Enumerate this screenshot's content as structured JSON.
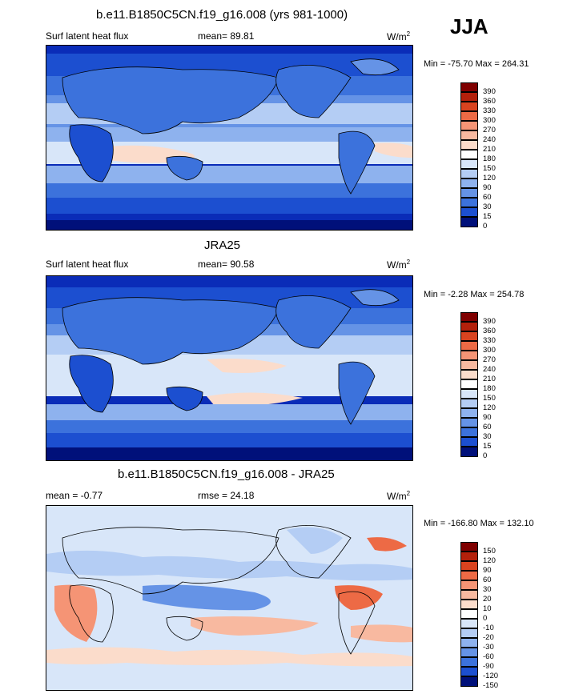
{
  "season": "JJA",
  "panels": [
    {
      "title": "b.e11.B1850C5CN.f19_g16.008 (yrs 981-1000)",
      "left_label": "Surf latent heat flux",
      "center_label": "mean=  89.81",
      "units": "W/m",
      "units_sup": "2",
      "minmax": "Min = -75.70 Max = 264.31",
      "colorbar_labels": [
        "390",
        "360",
        "330",
        "300",
        "270",
        "240",
        "210",
        "180",
        "150",
        "120",
        "90",
        "60",
        "30",
        "15",
        "0"
      ]
    },
    {
      "title": "JRA25",
      "left_label": "Surf latent heat flux",
      "center_label": "mean=  90.58",
      "units": "W/m",
      "units_sup": "2",
      "minmax": "Min =  -2.28 Max = 254.78",
      "colorbar_labels": [
        "390",
        "360",
        "330",
        "300",
        "270",
        "240",
        "210",
        "180",
        "150",
        "120",
        "90",
        "60",
        "30",
        "15",
        "0"
      ]
    },
    {
      "title": "b.e11.B1850C5CN.f19_g16.008 - JRA25",
      "left_label": "mean =  -0.77",
      "center_label": "rmse =  24.18",
      "units": "W/m",
      "units_sup": "2",
      "minmax": "Min = -166.80 Max = 132.10",
      "colorbar_labels": [
        "150",
        "120",
        "90",
        "60",
        "30",
        "20",
        "10",
        "0",
        "-10",
        "-20",
        "-30",
        "-60",
        "-90",
        "-120",
        "-150"
      ]
    }
  ],
  "colors": {
    "abs_scale": [
      "#7f0000",
      "#b3200b",
      "#d9431f",
      "#ed6a45",
      "#f59475",
      "#f8b9a0",
      "#fbdccb",
      "#ffffff",
      "#d8e6f9",
      "#b4cdf4",
      "#8eb2ee",
      "#6593e6",
      "#3c72dc",
      "#1c4fd0",
      "#0a2cb8",
      "#00107a"
    ],
    "diff_scale": [
      "#7f0000",
      "#b3200b",
      "#d9431f",
      "#ed6a45",
      "#f59475",
      "#f8b9a0",
      "#fbdccb",
      "#ffffff",
      "#d8e6f9",
      "#b4cdf4",
      "#8eb2ee",
      "#6593e6",
      "#3c72dc",
      "#1c4fd0",
      "#0a2cb8",
      "#00107a"
    ]
  }
}
